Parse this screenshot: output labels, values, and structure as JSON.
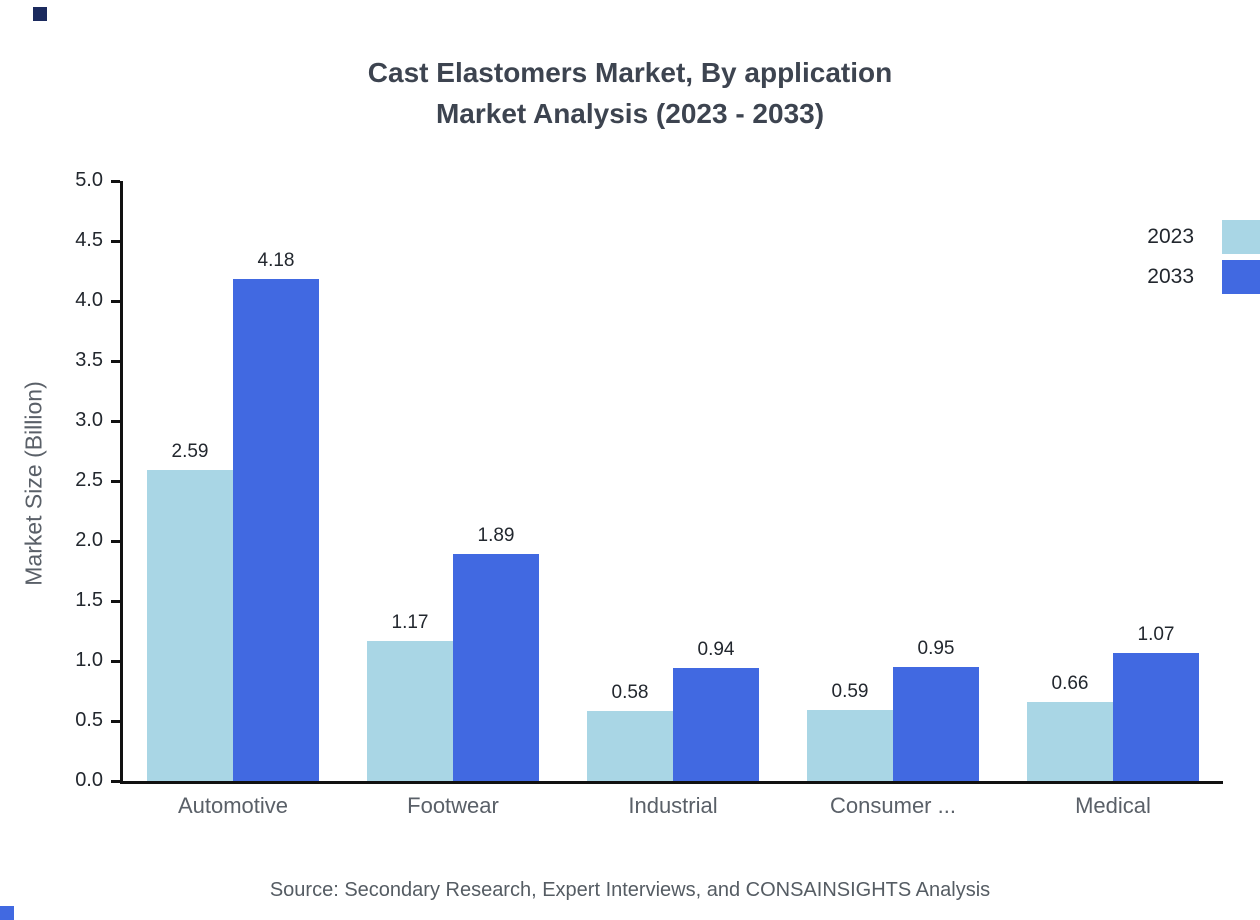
{
  "title": {
    "line1": "Cast Elastomers Market, By application",
    "line2": "Market Analysis (2023 - 2033)"
  },
  "chart_data": {
    "type": "bar",
    "categories": [
      "Automotive",
      "Footwear",
      "Industrial",
      "Consumer ...",
      "Medical"
    ],
    "series": [
      {
        "name": "2023",
        "color": "#a9d6e5",
        "values": [
          2.59,
          1.17,
          0.58,
          0.59,
          0.66
        ]
      },
      {
        "name": "2033",
        "color": "#4169e1",
        "values": [
          4.18,
          1.89,
          0.94,
          0.95,
          1.07
        ]
      }
    ],
    "title": "Cast Elastomers Market, By application Market Analysis (2023 - 2033)",
    "xlabel": "",
    "ylabel": "Market Size (Billion)",
    "ylim": [
      0,
      5
    ],
    "ytick_step": 0.5,
    "yticks": [
      "0.0",
      "0.5",
      "1.0",
      "1.5",
      "2.0",
      "2.5",
      "3.0",
      "3.5",
      "4.0",
      "4.5",
      "5.0"
    ],
    "grid": false,
    "legend_position": "top-right"
  },
  "colors": {
    "axis": "#111111",
    "corner_top": "#1b2a5e",
    "corner_bottom": "#4169e1"
  },
  "source": "Source: Secondary Research, Expert Interviews, and CONSAINSIGHTS Analysis"
}
